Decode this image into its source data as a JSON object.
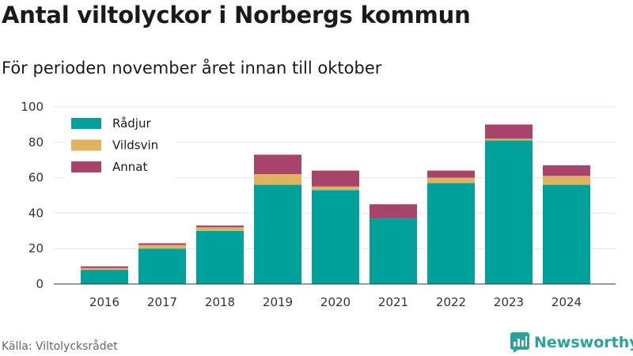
{
  "header": {
    "title": "Antal viltolyckor i Norbergs kommun",
    "subtitle": "För perioden november året innan till oktober"
  },
  "footer": {
    "source": "Källa: Viltolycksrådet",
    "brand": "Newsworthy"
  },
  "colors": {
    "radjur": "#00a19a",
    "vildsvin": "#dfb35f",
    "annat": "#a8436c",
    "grid": "#e6e6e6",
    "axis": "#333333",
    "brand": "#2aa39a"
  },
  "chart_data": {
    "type": "bar",
    "stacked": true,
    "categories": [
      "2016",
      "2017",
      "2018",
      "2019",
      "2020",
      "2021",
      "2022",
      "2023",
      "2024"
    ],
    "series": [
      {
        "name": "Rådjur",
        "values": [
          8,
          20,
          30,
          56,
          53,
          37,
          57,
          81,
          56
        ]
      },
      {
        "name": "Vildsvin",
        "values": [
          1,
          2,
          2,
          6,
          2,
          0,
          3,
          1,
          5
        ]
      },
      {
        "name": "Annat",
        "values": [
          1,
          1,
          1,
          11,
          9,
          8,
          4,
          8,
          6
        ]
      }
    ],
    "ylim": [
      0,
      100
    ],
    "yticks": [
      0,
      20,
      40,
      60,
      80,
      100
    ],
    "grid": true,
    "legend": "top-left"
  }
}
